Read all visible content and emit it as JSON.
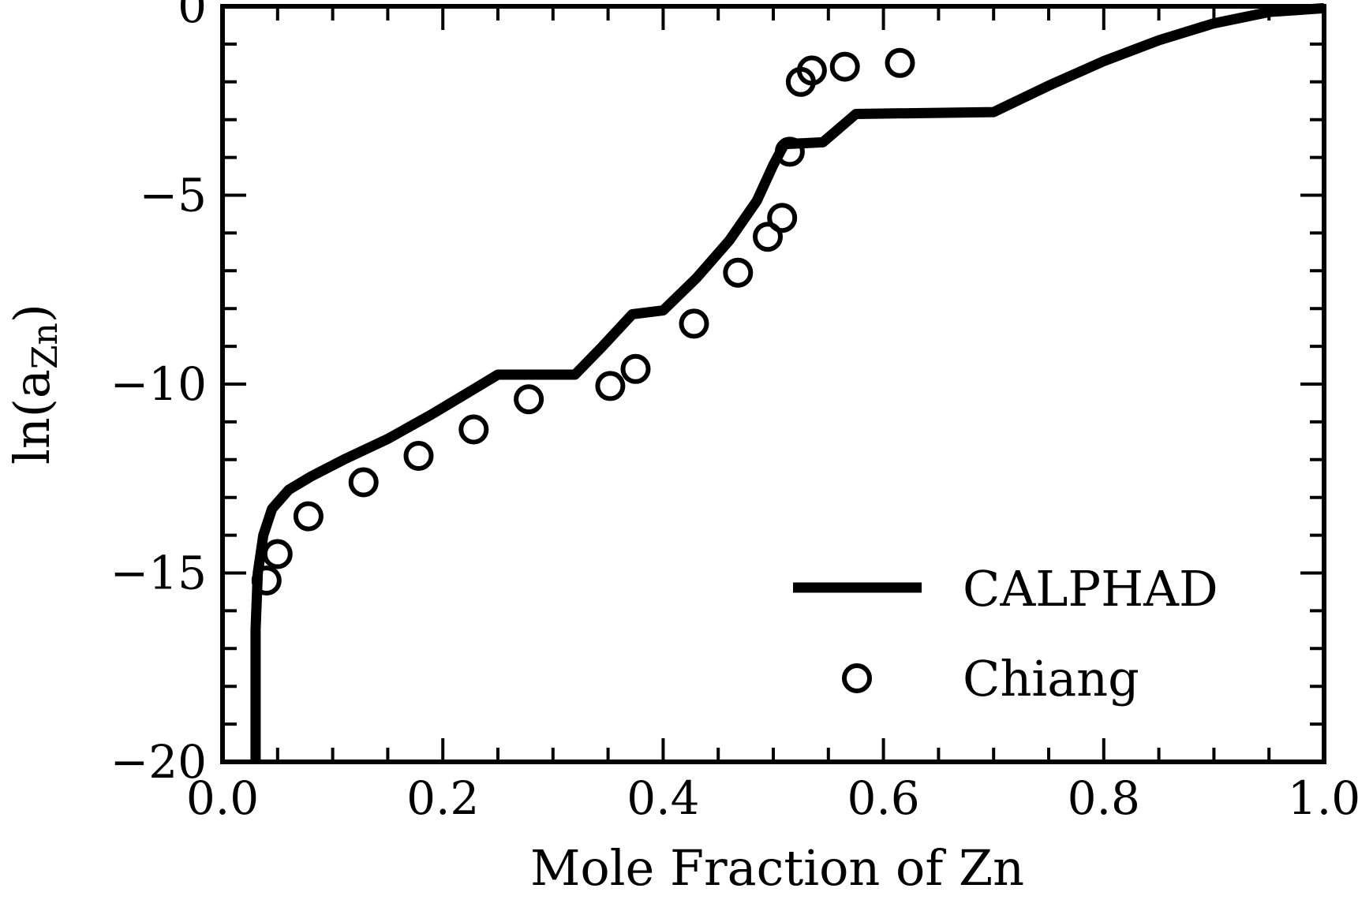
{
  "chart_data": {
    "type": "line",
    "xlabel": "Mole Fraction of Zn",
    "ylabel": "ln(a",
    "ylabel_subscript": "Zn",
    "ylabel_close": ")",
    "xlim": [
      0.0,
      1.0
    ],
    "ylim": [
      -20,
      0
    ],
    "xticks": [
      "0.0",
      "0.2",
      "0.4",
      "0.6",
      "0.8",
      "1.0"
    ],
    "yticks": [
      "0",
      "−5",
      "−10",
      "−15",
      "−20"
    ],
    "grid": false,
    "legend_position": "bottom-right",
    "series": [
      {
        "name": "CALPHAD",
        "style": "line",
        "color": "#000000",
        "points": [
          [
            0.03,
            -20
          ],
          [
            0.03,
            -16.5
          ],
          [
            0.032,
            -15.0
          ],
          [
            0.037,
            -14.0
          ],
          [
            0.045,
            -13.3
          ],
          [
            0.06,
            -12.8
          ],
          [
            0.08,
            -12.45
          ],
          [
            0.11,
            -12.0
          ],
          [
            0.15,
            -11.45
          ],
          [
            0.19,
            -10.8
          ],
          [
            0.23,
            -10.1
          ],
          [
            0.25,
            -9.75
          ],
          [
            0.32,
            -9.75
          ],
          [
            0.345,
            -9.0
          ],
          [
            0.372,
            -8.15
          ],
          [
            0.4,
            -8.05
          ],
          [
            0.43,
            -7.2
          ],
          [
            0.46,
            -6.2
          ],
          [
            0.485,
            -5.15
          ],
          [
            0.5,
            -4.2
          ],
          [
            0.51,
            -3.65
          ],
          [
            0.545,
            -3.6
          ],
          [
            0.575,
            -2.85
          ],
          [
            0.7,
            -2.8
          ],
          [
            0.75,
            -2.1
          ],
          [
            0.8,
            -1.45
          ],
          [
            0.85,
            -0.9
          ],
          [
            0.9,
            -0.45
          ],
          [
            0.95,
            -0.15
          ],
          [
            1.0,
            -0.05
          ]
        ]
      },
      {
        "name": "Chiang",
        "style": "marker-circle",
        "color": "#000000",
        "points": [
          [
            0.04,
            -15.2
          ],
          [
            0.05,
            -14.5
          ],
          [
            0.078,
            -13.5
          ],
          [
            0.128,
            -12.6
          ],
          [
            0.178,
            -11.9
          ],
          [
            0.228,
            -11.2
          ],
          [
            0.278,
            -10.4
          ],
          [
            0.352,
            -10.05
          ],
          [
            0.375,
            -9.6
          ],
          [
            0.428,
            -8.4
          ],
          [
            0.468,
            -7.05
          ],
          [
            0.495,
            -6.1
          ],
          [
            0.508,
            -5.6
          ],
          [
            0.515,
            -3.85
          ],
          [
            0.525,
            -2.0
          ],
          [
            0.535,
            -1.7
          ],
          [
            0.565,
            -1.6
          ],
          [
            0.615,
            -1.5
          ]
        ]
      }
    ]
  }
}
